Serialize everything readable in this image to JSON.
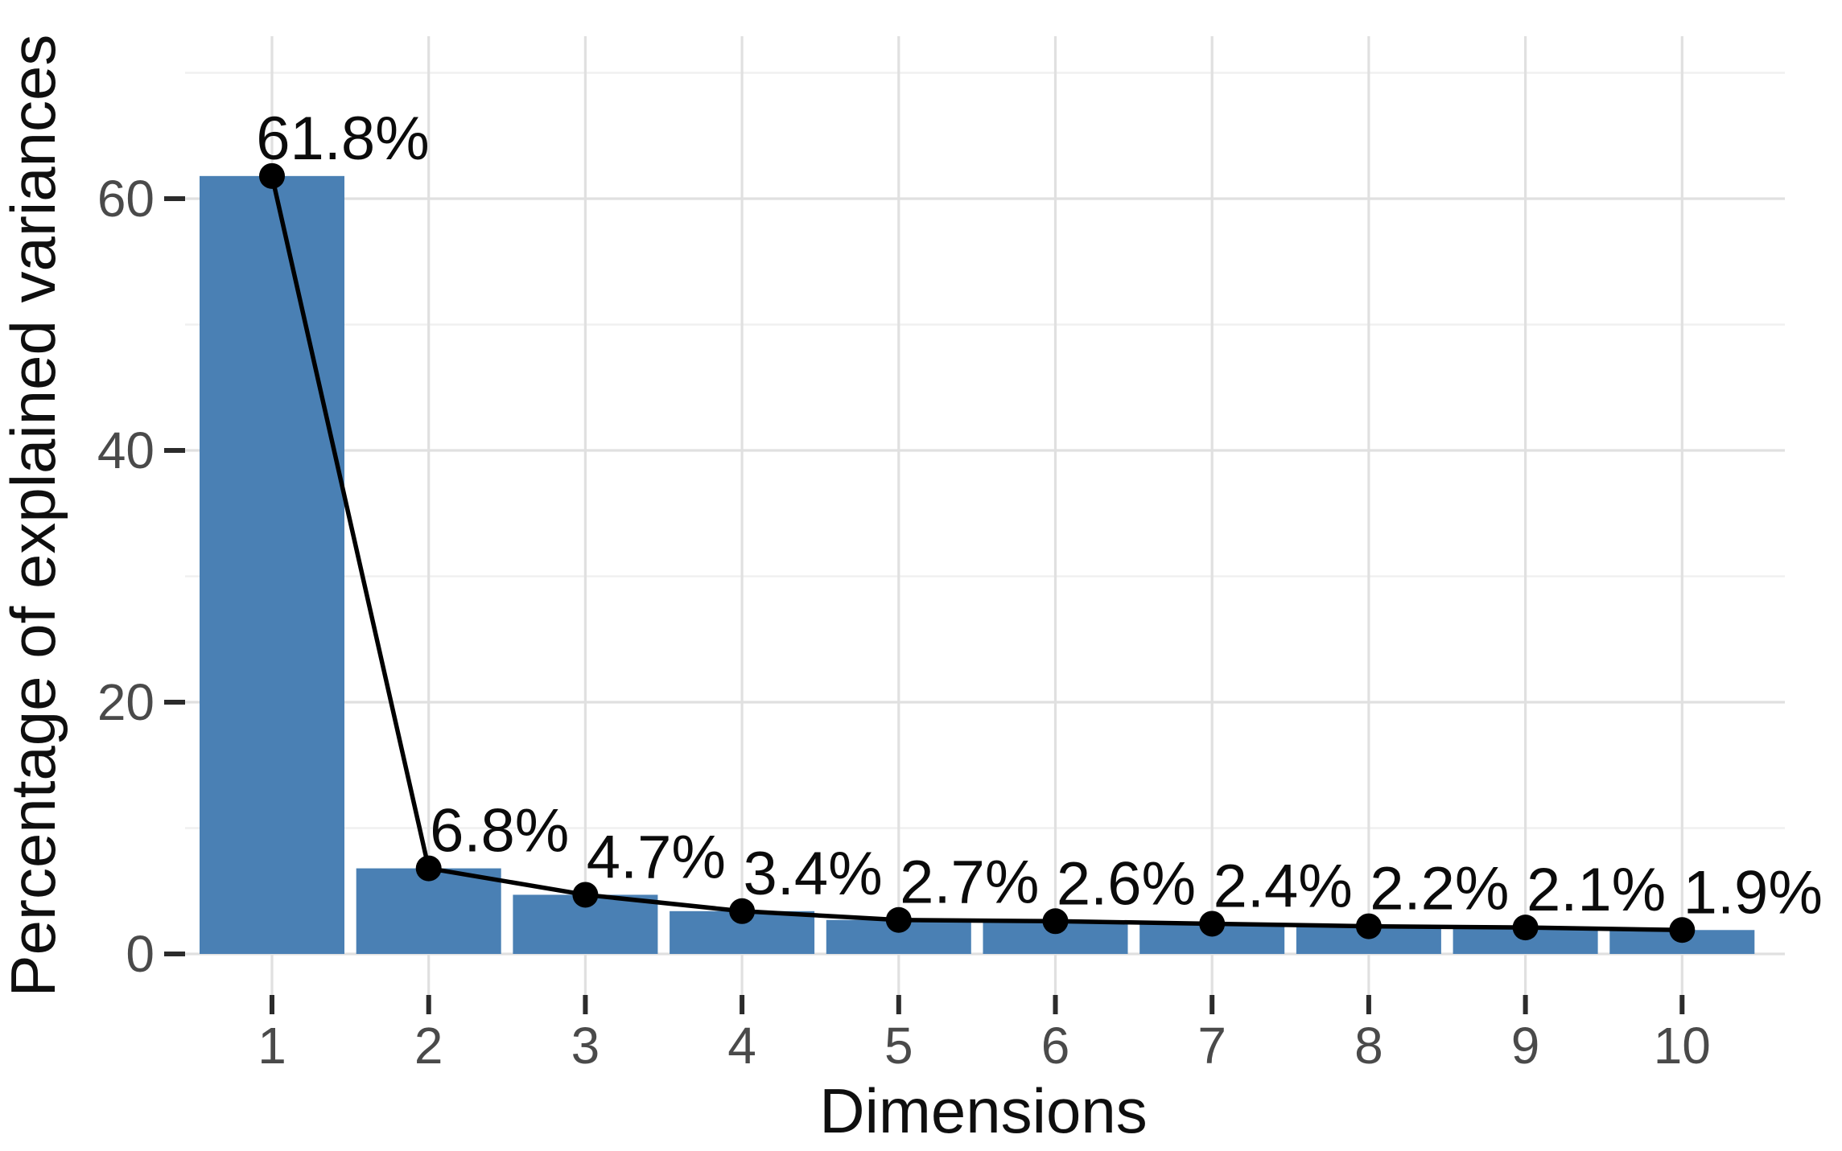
{
  "chart_data": {
    "type": "bar",
    "overlay": "line",
    "title": "",
    "xlabel": "Dimensions",
    "ylabel": "Percentage of explained variances",
    "categories": [
      1,
      2,
      3,
      4,
      5,
      6,
      7,
      8,
      9,
      10
    ],
    "x_tick_labels": [
      "1",
      "2",
      "3",
      "4",
      "5",
      "6",
      "7",
      "8",
      "9",
      "10"
    ],
    "values": [
      61.8,
      6.8,
      4.7,
      3.4,
      2.7,
      2.6,
      2.4,
      2.2,
      2.1,
      1.9
    ],
    "point_labels": [
      "61.8%",
      "6.8%",
      "4.7%",
      "3.4%",
      "2.7%",
      "2.6%",
      "2.4%",
      "2.2%",
      "2.1%",
      "1.9%"
    ],
    "y_ticks": [
      0,
      20,
      40,
      60
    ],
    "y_tick_labels": [
      "0",
      "20",
      "40",
      "60"
    ],
    "y_minor_gridlines": [
      10,
      30,
      50,
      70
    ],
    "ylim": [
      -3.2,
      72.8
    ],
    "grid": true,
    "legend": "none",
    "colors": {
      "bar": "#4A80B4",
      "line": "#000000",
      "point": "#000000",
      "grid_major": "#e0e0e0",
      "grid_minor": "#f0f0f0",
      "tick": "#2b2b2b",
      "tick_label": "#4a4a4a",
      "value_label": "#0b0b0b",
      "axis_title": "#0f0f0f",
      "panel_background": "#ffffff"
    }
  }
}
